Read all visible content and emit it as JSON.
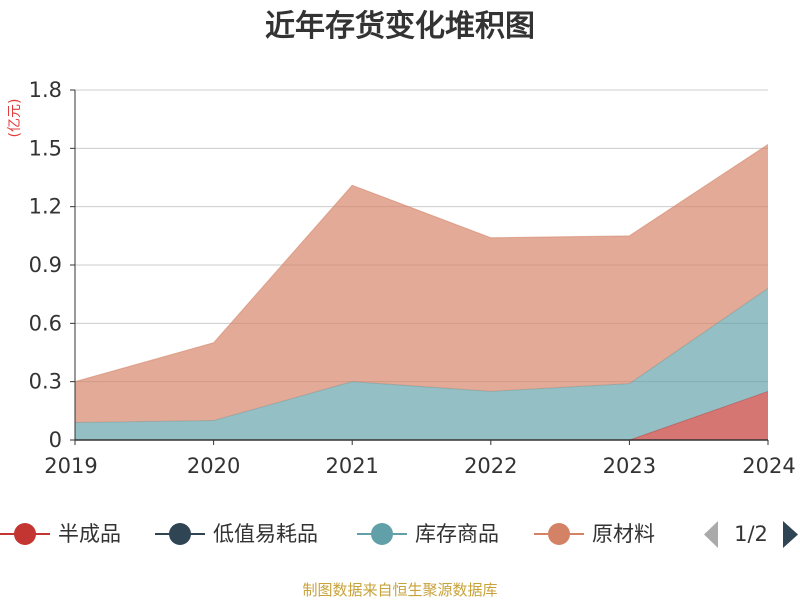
{
  "chart_data": {
    "type": "area",
    "stacked": true,
    "title": "近年存货变化堆积图",
    "unit_label": "(亿元)",
    "x": [
      "2019",
      "2020",
      "2021",
      "2022",
      "2023",
      "2024"
    ],
    "ylim": [
      0,
      1.8
    ],
    "y_ticks": [
      "0",
      "0.3",
      "0.6",
      "0.9",
      "1.2",
      "1.5",
      "1.8"
    ],
    "grid": true,
    "series": [
      {
        "name": "半成品",
        "color": "#c23531",
        "values": [
          0,
          0,
          0,
          0,
          0,
          0.25
        ]
      },
      {
        "name": "低值易耗品",
        "color": "#2f4554",
        "values": [
          0,
          0,
          0,
          0,
          0,
          0
        ]
      },
      {
        "name": "库存商品",
        "color": "#61a0a8",
        "values": [
          0.09,
          0.1,
          0.3,
          0.25,
          0.29,
          0.53
        ]
      },
      {
        "name": "原材料",
        "color": "#d48265",
        "values": [
          0.21,
          0.4,
          1.01,
          0.79,
          0.76,
          0.74
        ]
      }
    ],
    "legend_position": "bottom"
  },
  "legend": {
    "items": [
      {
        "label": "半成品",
        "color": "#c23531"
      },
      {
        "label": "低值易耗品",
        "color": "#2f4554"
      },
      {
        "label": "库存商品",
        "color": "#61a0a8"
      },
      {
        "label": "原材料",
        "color": "#d48265"
      }
    ],
    "pager_label": "1/2",
    "prev_icon": "triangle-left-icon",
    "next_icon": "triangle-right-icon"
  },
  "source": "制图数据来自恒生聚源数据库"
}
